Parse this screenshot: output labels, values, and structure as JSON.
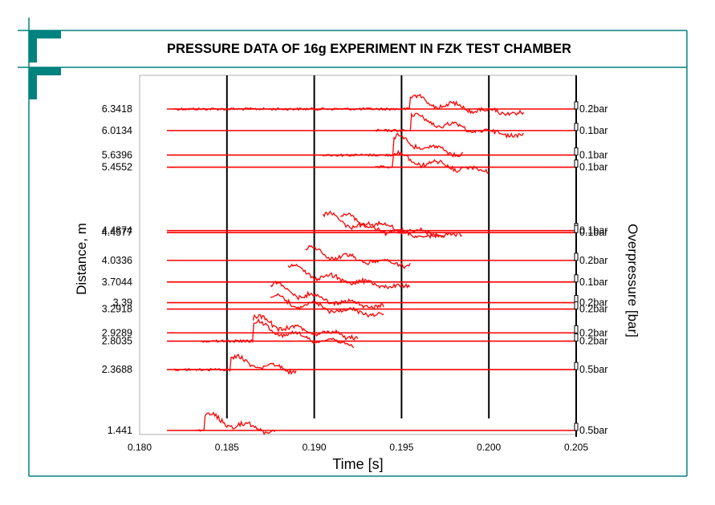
{
  "slide": {
    "title": "PRESSURE DATA OF 16g EXPERIMENT IN FZK TEST CHAMBER",
    "colors": {
      "frame": "#00827F",
      "trace": "#FF0000",
      "axis": "#000000"
    }
  },
  "chart_data": {
    "type": "line",
    "title": "PRESSURE DATA OF 16g EXPERIMENT IN FZK TEST CHAMBER",
    "xlabel": "Time [s]",
    "ylabel": "Distance, m",
    "y2label": "Overpressure [bar]",
    "xlim": [
      0.18,
      0.205
    ],
    "x_ticks": [
      "0.180",
      "0.185",
      "0.190",
      "0.195",
      "0.200",
      "0.205"
    ],
    "vertical_gridlines": [
      0.185,
      0.19,
      0.195,
      0.2
    ],
    "channels": [
      {
        "distance": "6.3418",
        "scale": "0.2bar",
        "t_start": 0.182,
        "t_end": 0.202,
        "rise": 0.1955
      },
      {
        "distance": "6.0134",
        "scale": "0.1bar",
        "t_start": 0.1935,
        "t_end": 0.202,
        "rise": 0.1955
      },
      {
        "distance": "5.6396",
        "scale": "0.1bar",
        "t_start": 0.1905,
        "t_end": 0.1985,
        "rise": 0.1945
      },
      {
        "distance": "5.4552",
        "scale": "0.1bar",
        "t_start": 0.1935,
        "t_end": 0.2,
        "rise": 0.1945
      },
      {
        "distance": "4.4874",
        "scale": "0.1bar",
        "t_start": 0.1915,
        "t_end": 0.1985,
        "rise": 0.1915
      },
      {
        "distance": "4.4577",
        "scale": "0.1bar",
        "t_start": 0.1905,
        "t_end": 0.1975,
        "rise": 0.1905
      },
      {
        "distance": "4.0336",
        "scale": "0.2bar",
        "t_start": 0.1895,
        "t_end": 0.1955,
        "rise": 0.1895
      },
      {
        "distance": "3.7044",
        "scale": "0.1bar",
        "t_start": 0.1885,
        "t_end": 0.1955,
        "rise": 0.1885
      },
      {
        "distance": "3.39",
        "scale": "0.2bar",
        "t_start": 0.1875,
        "t_end": 0.194,
        "rise": 0.1875
      },
      {
        "distance": "3.2918",
        "scale": "0.2bar",
        "t_start": 0.1875,
        "t_end": 0.194,
        "rise": 0.1875
      },
      {
        "distance": "2.9289",
        "scale": "0.2bar",
        "t_start": 0.1865,
        "t_end": 0.1925,
        "rise": 0.1865
      },
      {
        "distance": "2.8035",
        "scale": "0.2bar",
        "t_start": 0.1835,
        "t_end": 0.1923,
        "rise": 0.1865
      },
      {
        "distance": "2.3688",
        "scale": "0.5bar",
        "t_start": 0.182,
        "t_end": 0.189,
        "rise": 0.1852
      },
      {
        "distance": "1.441",
        "scale": "0.5bar",
        "t_start": 0.1832,
        "t_end": 0.1878,
        "rise": 0.1837
      }
    ]
  }
}
